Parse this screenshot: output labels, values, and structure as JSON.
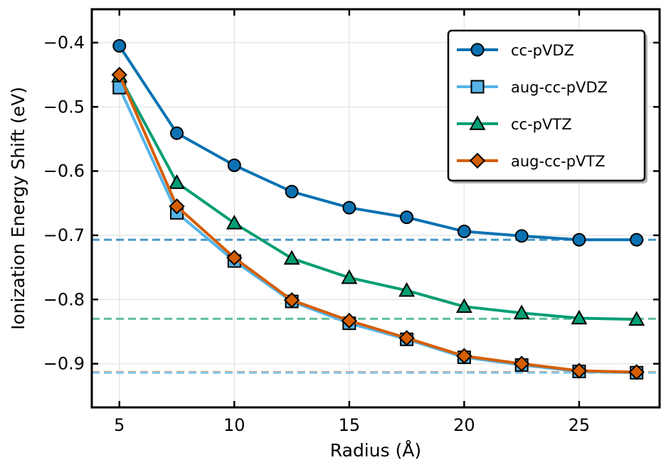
{
  "chart_data": {
    "type": "line",
    "title": "",
    "xlabel": "Radius (Å)",
    "ylabel": "Ionization Energy Shift (eV)",
    "xlim": [
      3.8,
      28.5
    ],
    "ylim": [
      -0.968,
      -0.348
    ],
    "xticks": [
      5,
      10,
      15,
      20,
      25
    ],
    "yticks": [
      -0.4,
      -0.5,
      -0.6,
      -0.7,
      -0.8,
      -0.9
    ],
    "xtick_labels": [
      "5",
      "10",
      "15",
      "20",
      "25"
    ],
    "ytick_labels": [
      "−0.4",
      "−0.5",
      "−0.6",
      "−0.7",
      "−0.8",
      "−0.9"
    ],
    "grid": true,
    "legend_position": "top-right",
    "x": [
      5,
      7.5,
      10,
      12.5,
      15,
      17.5,
      20,
      22.5,
      25,
      27.5
    ],
    "series": [
      {
        "name": "cc-pVDZ",
        "color": "#0a72b2",
        "marker": "circle",
        "linestyle": "solid",
        "values": [
          -0.405,
          -0.541,
          -0.591,
          -0.632,
          -0.657,
          -0.672,
          -0.694,
          -0.701,
          -0.707,
          -0.707
        ]
      },
      {
        "name": "aug-cc-pVDZ",
        "color": "#56b4e9",
        "marker": "square",
        "linestyle": "solid",
        "values": [
          -0.47,
          -0.665,
          -0.74,
          -0.803,
          -0.837,
          -0.862,
          -0.89,
          -0.902,
          -0.912,
          -0.914
        ]
      },
      {
        "name": "cc-pVTZ",
        "color": "#029e73",
        "marker": "triangle",
        "linestyle": "solid",
        "values": [
          -0.452,
          -0.618,
          -0.681,
          -0.736,
          -0.766,
          -0.786,
          -0.811,
          -0.821,
          -0.829,
          -0.831
        ]
      },
      {
        "name": "aug-cc-pVTZ",
        "color": "#d55e00",
        "marker": "diamond",
        "linestyle": "solid",
        "values": [
          -0.45,
          -0.655,
          -0.735,
          -0.801,
          -0.833,
          -0.86,
          -0.888,
          -0.9,
          -0.911,
          -0.913
        ]
      }
    ],
    "reference_lines": [
      {
        "y": -0.707,
        "color": "#4a98c6",
        "linestyle": "dashed"
      },
      {
        "y": -0.83,
        "color": "#5fbf9c",
        "linestyle": "dashed"
      },
      {
        "y": -0.913,
        "color": "#e09a68",
        "linestyle": "dashed"
      },
      {
        "y": -0.914,
        "color": "#86c6ea",
        "linestyle": "dashed"
      }
    ]
  }
}
